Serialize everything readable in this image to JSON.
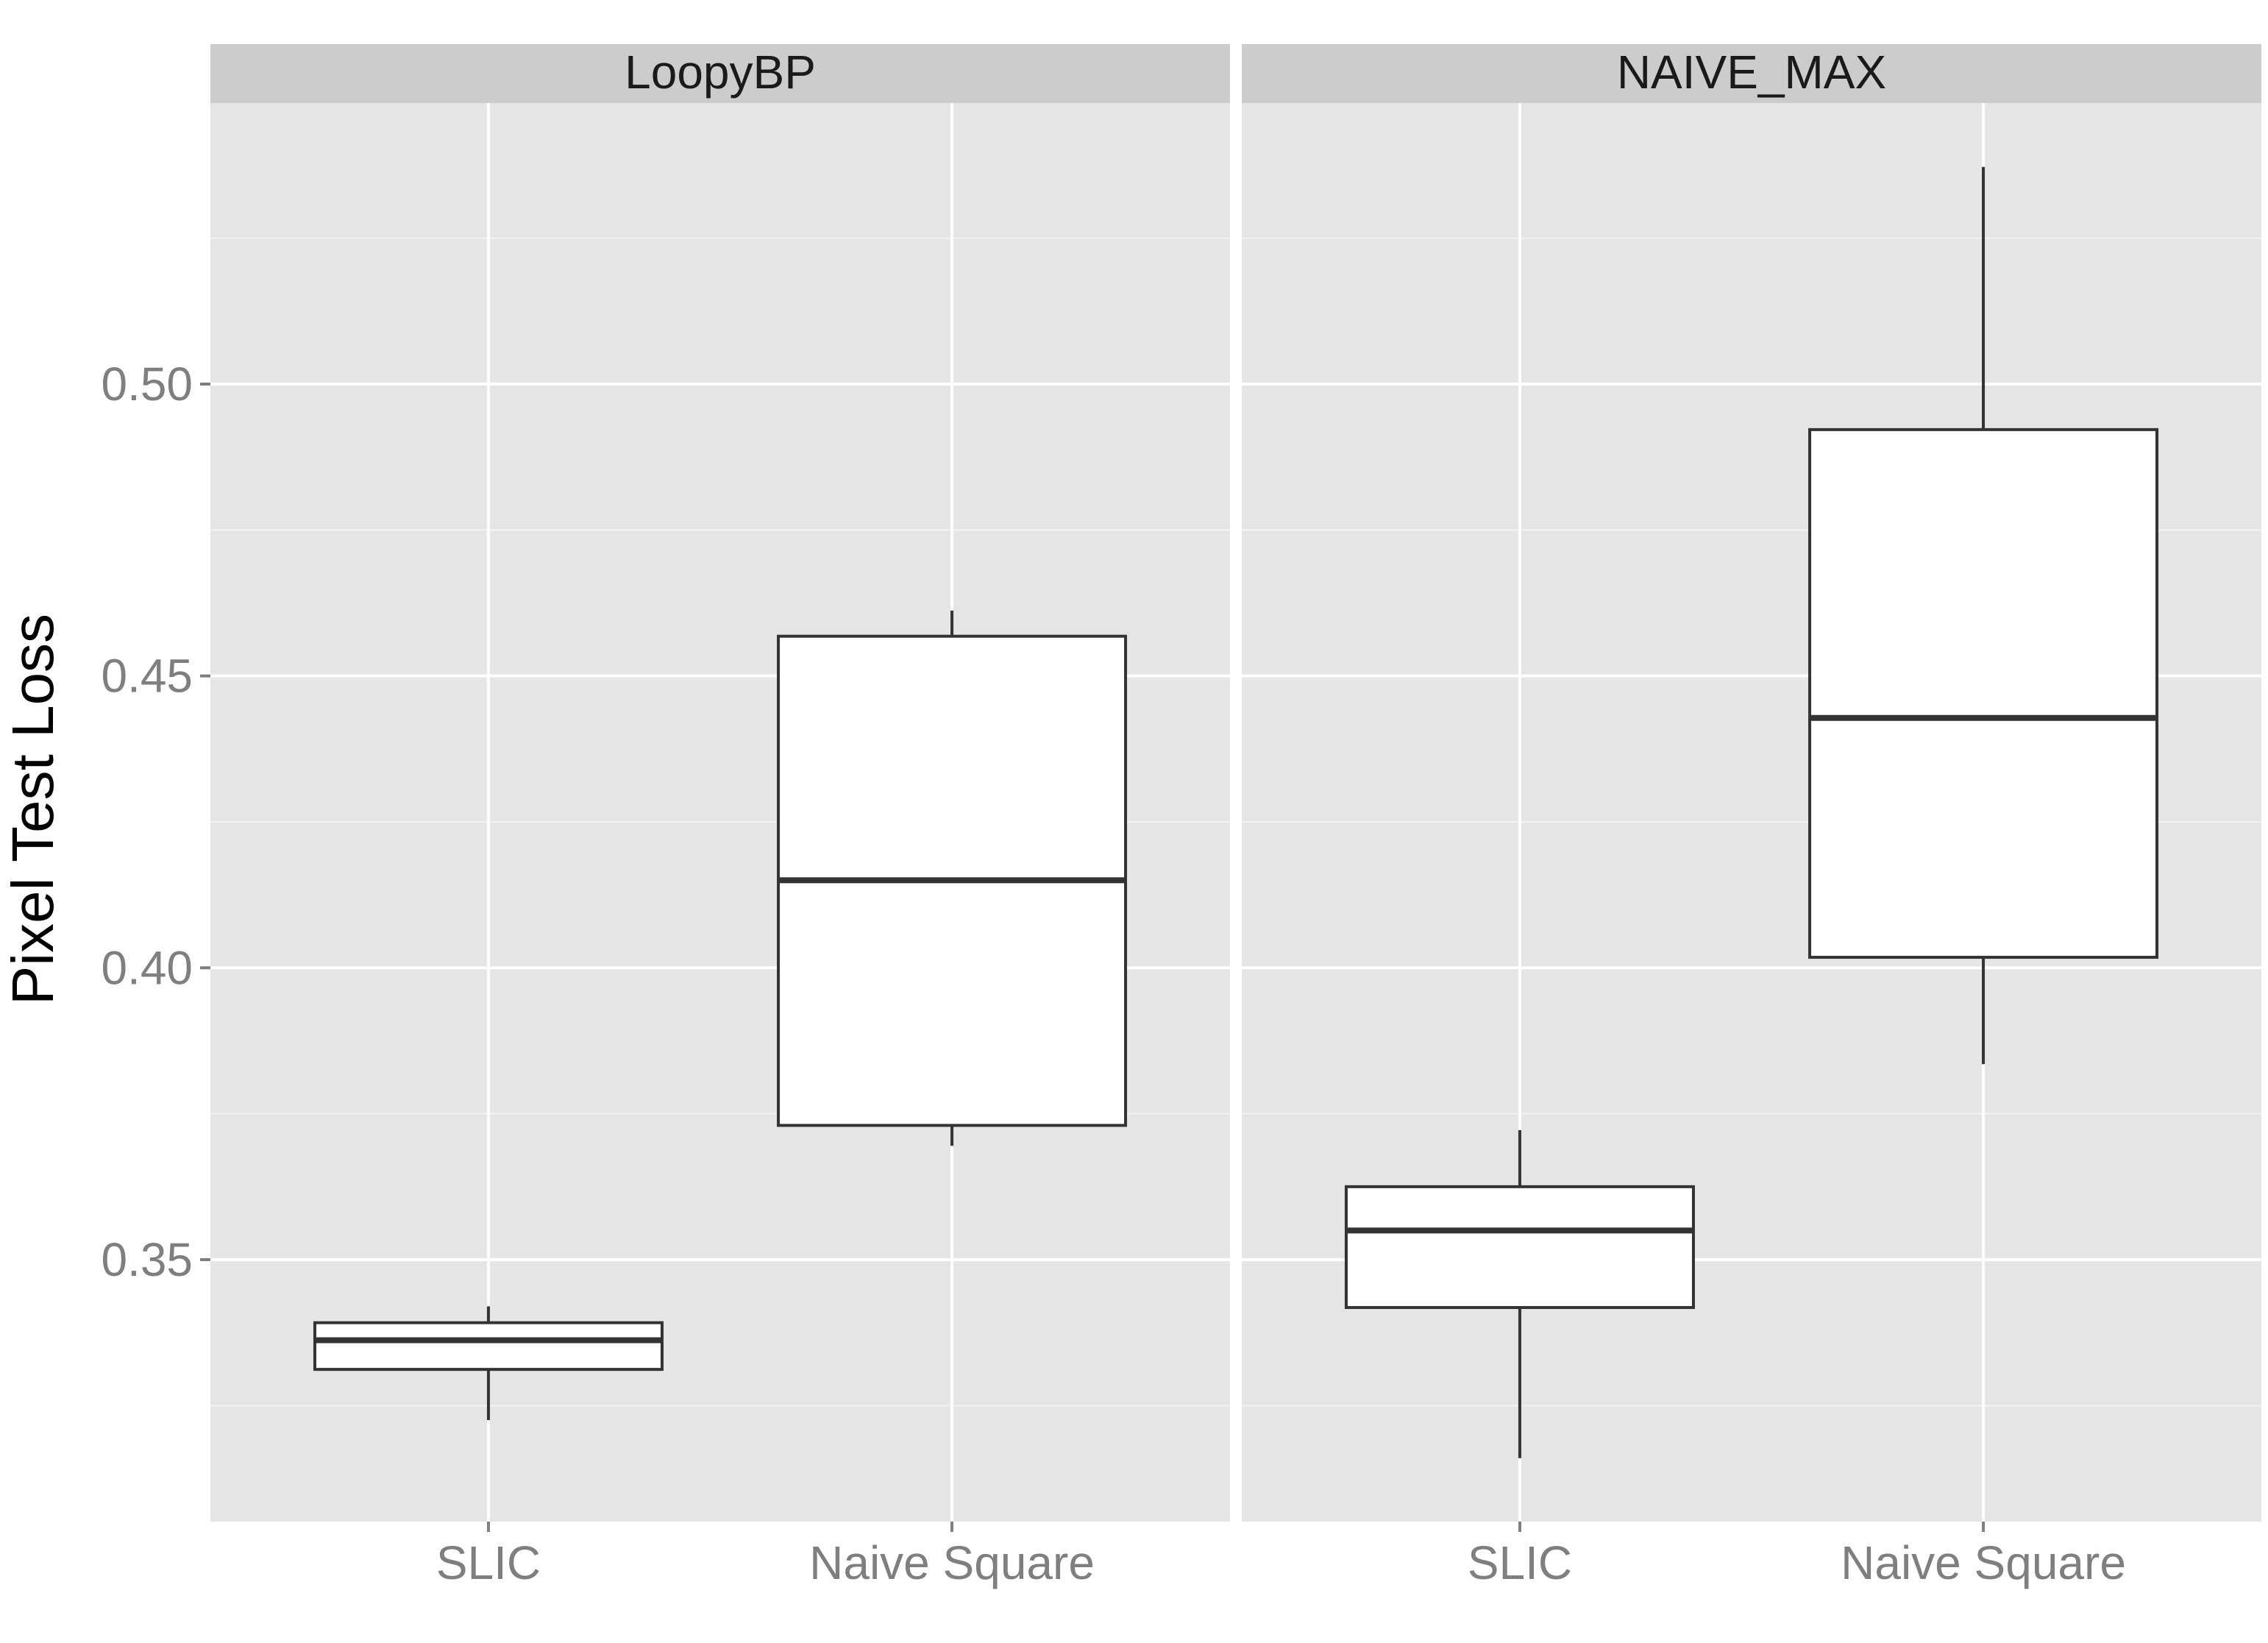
{
  "chart_data": {
    "type": "boxplot",
    "ylabel": "Pixel Test Loss",
    "xlabel": "",
    "ylim": [
      0.305,
      0.548
    ],
    "y_major_ticks": [
      0.35,
      0.4,
      0.45,
      0.5
    ],
    "y_tick_labels": [
      "0.35",
      "0.40",
      "0.45",
      "0.50"
    ],
    "categories": [
      "SLIC",
      "Naive Square"
    ],
    "grid": true,
    "facets": [
      {
        "label": "LoopyBP",
        "boxes": [
          {
            "category": "SLIC",
            "whisker_low": 0.3225,
            "q1": 0.3312,
            "median": 0.3362,
            "q3": 0.3392,
            "whisker_high": 0.342
          },
          {
            "category": "Naive Square",
            "whisker_low": 0.3695,
            "q1": 0.373,
            "median": 0.415,
            "q3": 0.4568,
            "whisker_high": 0.4612
          }
        ]
      },
      {
        "label": "NAIVE_MAX",
        "boxes": [
          {
            "category": "SLIC",
            "whisker_low": 0.316,
            "q1": 0.3418,
            "median": 0.355,
            "q3": 0.3625,
            "whisker_high": 0.3722
          },
          {
            "category": "Naive Square",
            "whisker_low": 0.3835,
            "q1": 0.4018,
            "median": 0.4428,
            "q3": 0.4922,
            "whisker_high": 0.5372
          }
        ]
      }
    ]
  }
}
